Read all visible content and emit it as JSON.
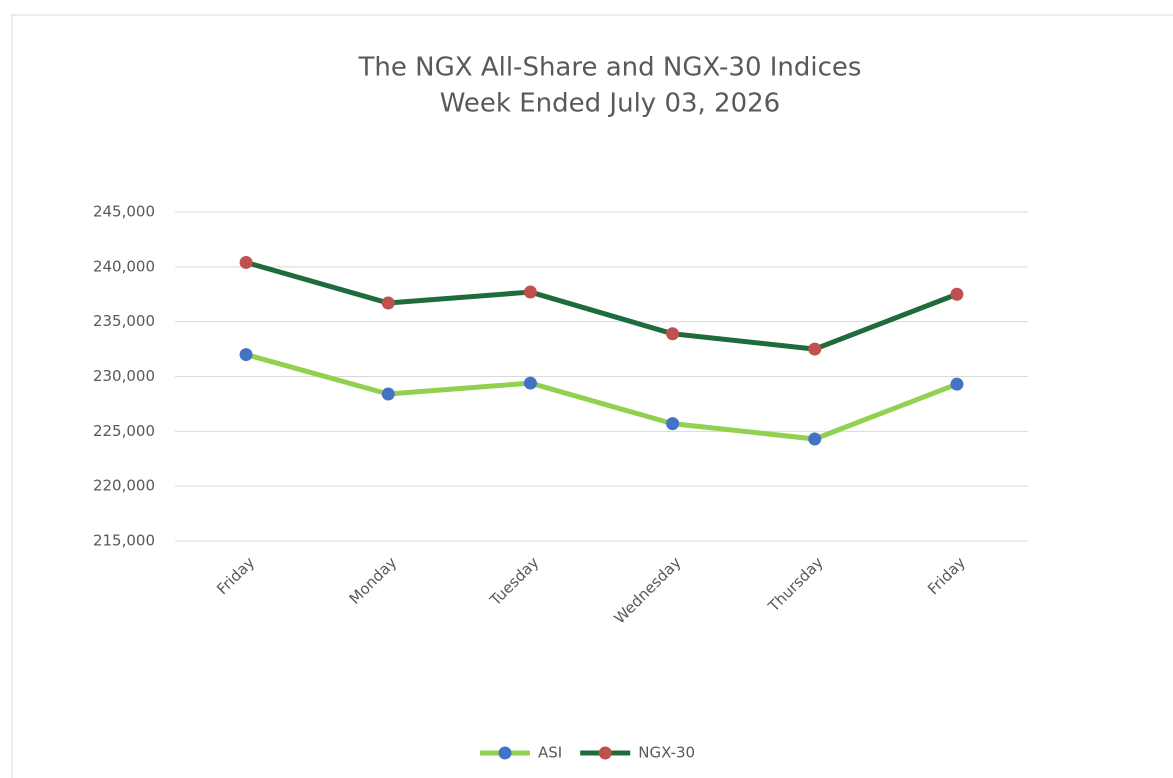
{
  "chart_data": {
    "type": "line",
    "title": "The NGX All-Share and NGX-30 Indices",
    "subtitle": "Week Ended July 03,  2026",
    "categories": [
      "Friday",
      "Monday",
      "Tuesday",
      "Wednesday",
      "Thursday",
      "Friday"
    ],
    "series": [
      {
        "name": "ASI",
        "color": "#92d050",
        "marker_color": "#4472c4",
        "values": [
          232000,
          228400,
          229400,
          225700,
          224300,
          229300
        ]
      },
      {
        "name": "NGX-30",
        "color": "#1e6b3c",
        "marker_color": "#c0504d",
        "values": [
          240400,
          236700,
          237700,
          233900,
          232500,
          237500
        ]
      }
    ],
    "ylim": [
      215000,
      245000
    ],
    "yticks": [
      {
        "value": 215000,
        "label": "215,000"
      },
      {
        "value": 220000,
        "label": "220,000"
      },
      {
        "value": 225000,
        "label": "225,000"
      },
      {
        "value": 230000,
        "label": "230,000"
      },
      {
        "value": 235000,
        "label": "235,000"
      },
      {
        "value": 240000,
        "label": "240,000"
      },
      {
        "value": 245000,
        "label": "245,000"
      }
    ],
    "grid": true,
    "legend": "bottom"
  }
}
